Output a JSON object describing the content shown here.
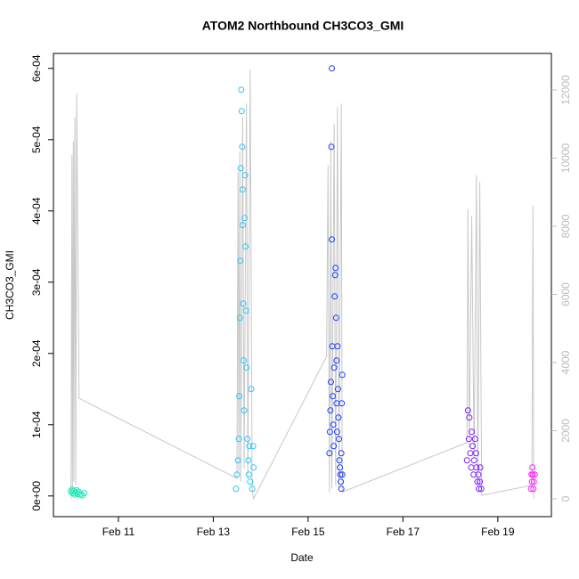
{
  "chart_data": {
    "type": "scatter",
    "title": "ATOM2 Northbound CH3CO3_GMI",
    "x_label": "Date",
    "y_label": "CH3CO3_GMI",
    "xlim": [
      9.63,
      20.13
    ],
    "xticks": [
      {
        "value": 11,
        "label": "Feb 11"
      },
      {
        "value": 13,
        "label": "Feb 13"
      },
      {
        "value": 15,
        "label": "Feb 15"
      },
      {
        "value": 17,
        "label": "Feb 17"
      },
      {
        "value": 19,
        "label": "Feb 19"
      }
    ],
    "ylim": [
      -2.9e-05,
      0.000621
    ],
    "yticks": [
      {
        "value": 0,
        "label": "0e+00"
      },
      {
        "value": 0.0001,
        "label": "1e-04"
      },
      {
        "value": 0.0002,
        "label": "2e-04"
      },
      {
        "value": 0.0003,
        "label": "3e-04"
      },
      {
        "value": 0.0004,
        "label": "4e-04"
      },
      {
        "value": 0.0005,
        "label": "5e-04"
      },
      {
        "value": 0.0006,
        "label": "6e-04"
      }
    ],
    "y2lim": [
      -523,
      13072
    ],
    "y2ticks": [
      0,
      2000,
      4000,
      6000,
      8000,
      10000,
      12000
    ],
    "y2_color": "#bbbbbb",
    "series": [
      {
        "type": "line",
        "axis": "y2",
        "color": "#c8c8c8",
        "x": [
          10.0,
          10.02,
          10.03,
          10.05,
          10.06,
          10.08,
          10.1,
          10.12,
          10.17,
          13.5,
          13.52,
          13.54,
          13.56,
          13.58,
          13.62,
          13.65,
          13.7,
          13.73,
          13.78,
          13.82,
          13.85,
          15.39,
          15.42,
          15.45,
          15.48,
          15.5,
          15.55,
          15.58,
          15.62,
          15.65,
          15.7,
          15.72,
          18.35,
          18.37,
          18.4,
          18.45,
          18.5,
          18.55,
          18.58,
          18.62,
          18.66,
          19.72,
          19.74,
          19.76
        ],
        "values": [
          0,
          10100,
          300,
          10500,
          500,
          11200,
          400,
          11900,
          2950,
          600,
          9600,
          800,
          10200,
          500,
          11200,
          900,
          11600,
          600,
          12600,
          300,
          0,
          4180,
          9800,
          200,
          10500,
          300,
          11000,
          400,
          11500,
          300,
          11600,
          200,
          1650,
          8500,
          1500,
          8300,
          1200,
          9500,
          400,
          9300,
          100,
          400,
          8600,
          0
        ]
      },
      {
        "type": "scatter",
        "color": "#1de9b6",
        "x": [
          10.0,
          10.02,
          10.04,
          10.06,
          10.08,
          10.1,
          10.12,
          10.14,
          10.16,
          10.2,
          10.24,
          10.28
        ],
        "values": [
          6e-06,
          9e-06,
          4e-06,
          7e-06,
          2e-06,
          5e-06,
          8e-06,
          3e-06,
          6e-06,
          2e-06,
          1e-06,
          4e-06
        ]
      },
      {
        "type": "scatter",
        "color": "#29c5f6",
        "x": [
          13.48,
          13.5,
          13.52,
          13.54,
          13.55,
          13.56,
          13.57,
          13.58,
          13.59,
          13.6,
          13.61,
          13.62,
          13.62,
          13.63,
          13.64,
          13.65,
          13.66,
          13.67,
          13.68,
          13.69,
          13.7,
          13.72,
          13.74,
          13.75,
          13.76,
          13.78,
          13.8,
          13.82,
          13.84,
          13.85
        ],
        "values": [
          1e-05,
          3e-05,
          5e-05,
          8e-05,
          0.00014,
          0.00025,
          0.00033,
          0.00046,
          0.00057,
          0.00054,
          0.00049,
          0.00043,
          0.00038,
          0.00027,
          0.00019,
          0.00012,
          0.00039,
          0.00045,
          0.00035,
          0.00026,
          0.00018,
          8e-05,
          5e-05,
          3e-05,
          7e-05,
          2e-05,
          0.00015,
          1e-05,
          7e-05,
          4e-05
        ]
      },
      {
        "type": "scatter",
        "color": "#1a3cff",
        "x": [
          15.45,
          15.46,
          15.47,
          15.48,
          15.49,
          15.5,
          15.5,
          15.51,
          15.52,
          15.53,
          15.54,
          15.55,
          15.56,
          15.57,
          15.58,
          15.59,
          15.6,
          15.6,
          15.61,
          15.62,
          15.63,
          15.64,
          15.65,
          15.66,
          15.67,
          15.68,
          15.69,
          15.7,
          15.7,
          15.71,
          15.72,
          15.72
        ],
        "values": [
          6e-05,
          9e-05,
          0.00012,
          0.00016,
          0.00049,
          0.0006,
          0.00036,
          0.00021,
          0.00014,
          0.0001,
          7e-05,
          0.00018,
          0.00028,
          0.00031,
          0.00032,
          0.00025,
          0.00019,
          0.00013,
          9e-05,
          0.00021,
          0.00015,
          0.00011,
          8e-05,
          5e-05,
          4e-05,
          3e-05,
          2e-05,
          6e-05,
          1e-05,
          0.00013,
          3e-05,
          0.00017
        ]
      },
      {
        "type": "scatter",
        "color": "#7a1aff",
        "x": [
          18.35,
          18.37,
          18.39,
          18.4,
          18.42,
          18.44,
          18.45,
          18.47,
          18.49,
          18.5,
          18.52,
          18.54,
          18.55,
          18.57,
          18.59,
          18.6,
          18.62,
          18.63,
          18.65
        ],
        "values": [
          5e-05,
          0.00012,
          8e-05,
          0.00011,
          6e-05,
          4e-05,
          9e-05,
          7e-05,
          3e-05,
          5e-05,
          8e-05,
          6e-05,
          4e-05,
          2e-05,
          3e-05,
          1e-05,
          2e-05,
          4e-05,
          1e-05
        ]
      },
      {
        "type": "scatter",
        "color": "#ff1aff",
        "x": [
          19.7,
          19.71,
          19.72,
          19.73,
          19.74,
          19.75,
          19.76,
          19.78
        ],
        "values": [
          1e-05,
          3e-05,
          2e-05,
          4e-05,
          3e-05,
          1e-05,
          2e-05,
          3e-05
        ]
      }
    ]
  }
}
